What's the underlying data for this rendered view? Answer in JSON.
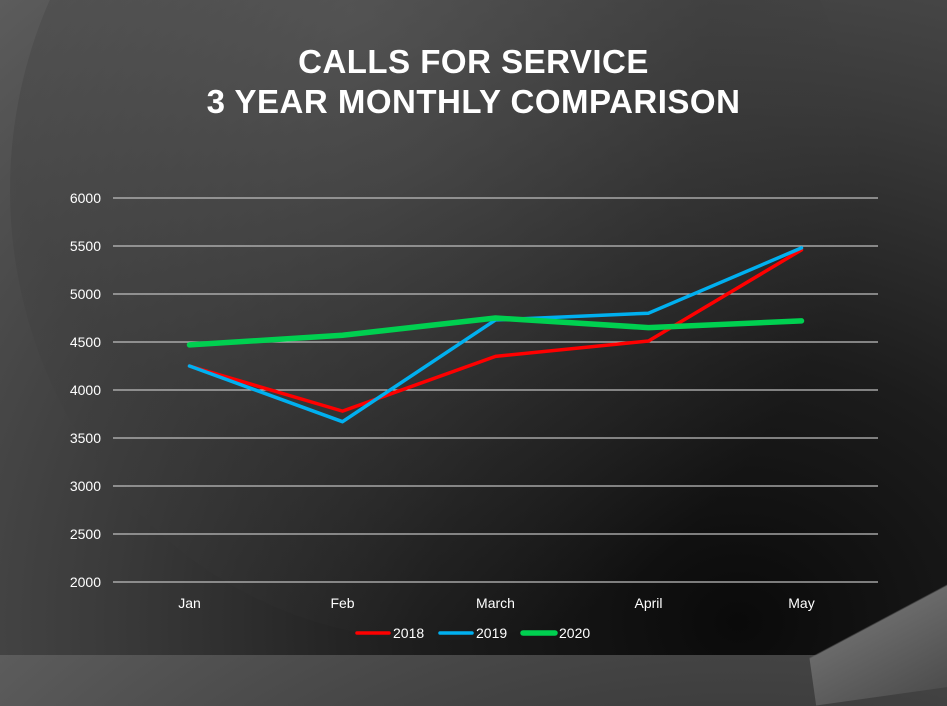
{
  "chart_data": {
    "type": "line",
    "title": "CALLS FOR SERVICE",
    "subtitle": "3 YEAR MONTHLY COMPARISON",
    "categories": [
      "Jan",
      "Feb",
      "March",
      "April",
      "May"
    ],
    "ylim": [
      2000,
      6000
    ],
    "yticks": [
      "2000",
      "2500",
      "3000",
      "3500",
      "4000",
      "4500",
      "5000",
      "5500",
      "6000"
    ],
    "grid": true,
    "legend_position": "bottom",
    "series": [
      {
        "name": "2018",
        "color": "#ff0000",
        "values": [
          4250,
          3780,
          4350,
          4510,
          5460
        ]
      },
      {
        "name": "2019",
        "color": "#00b0f0",
        "values": [
          4250,
          3670,
          4730,
          4800,
          5480
        ]
      },
      {
        "name": "2020",
        "color": "#00d050",
        "values": [
          4470,
          4570,
          4750,
          4650,
          4720
        ]
      }
    ]
  }
}
